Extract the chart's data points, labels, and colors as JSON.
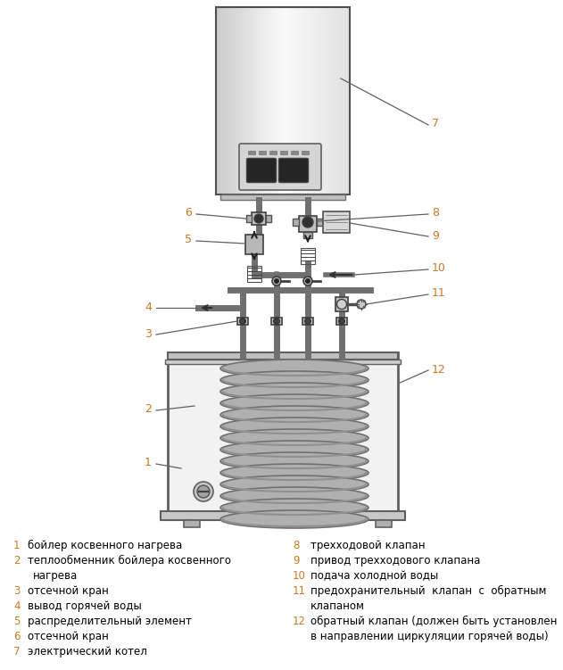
{
  "bg_color": "#ffffff",
  "line_color": "#404040",
  "boiler_border": "#606060",
  "pipe_color": "#707070",
  "orange": "#d07820",
  "legend_items_left": [
    {
      "num": "1",
      "text": "бойлер косвенного нагрева"
    },
    {
      "num": "2",
      "text": "теплообменник бойлера косвенного\nнагрева"
    },
    {
      "num": "3",
      "text": "отсечной кран"
    },
    {
      "num": "4",
      "text": "вывод горячей воды"
    },
    {
      "num": "5",
      "text": "распределительный элемент"
    },
    {
      "num": "6",
      "text": "отсечной кран"
    },
    {
      "num": "7",
      "text": "электрический котел"
    }
  ],
  "legend_items_right": [
    {
      "num": "8",
      "text": "трехходовой клапан"
    },
    {
      "num": "9",
      "text": "привод трехходового клапана"
    },
    {
      "num": "10",
      "text": "подача холодной воды"
    },
    {
      "num": "11",
      "text": "предохранительный  клапан  с  обратным\nклапаном"
    },
    {
      "num": "12",
      "text": "обратный клапан (должен быть установлен\nв направлении циркуляции горячей воды)"
    }
  ],
  "figure_width": 6.31,
  "figure_height": 7.51
}
